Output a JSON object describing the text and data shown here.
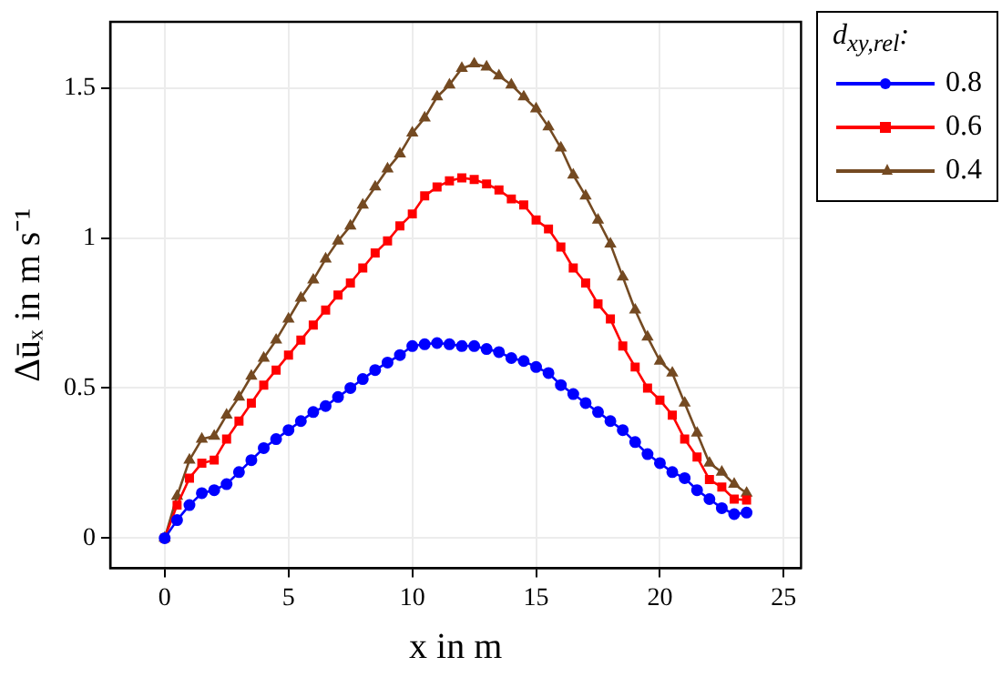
{
  "chart_data": {
    "type": "line",
    "xlabel": "x in m",
    "ylabel": "Δūₓ in m s⁻¹",
    "legend_title": "d$_{xy,rel}$:",
    "legend": "top right",
    "grid": true,
    "line_style": "solid",
    "x": [
      0,
      0.5,
      1,
      1.5,
      2,
      2.5,
      3,
      3.5,
      4,
      4.5,
      5,
      5.5,
      6,
      6.5,
      7,
      7.5,
      8,
      8.5,
      9,
      9.5,
      10,
      10.5,
      11,
      11.5,
      12,
      12.5,
      13,
      13.5,
      14,
      14.5,
      15,
      15.5,
      16,
      16.5,
      17,
      17.5,
      18,
      18.5,
      19,
      19.5,
      20,
      20.5,
      21,
      21.5,
      22,
      22.5,
      23,
      23.5
    ],
    "xlim": [
      -2.2,
      25.7
    ],
    "xticks": [
      0,
      5,
      10,
      15,
      20,
      25
    ],
    "ylim": [
      -0.1,
      1.72
    ],
    "yticks": [
      0,
      {
        "value": 0.5,
        "label": "0.5"
      },
      1,
      {
        "value": 1.5,
        "label": "1.5"
      }
    ],
    "series": [
      {
        "name": "0.8",
        "color": "#0000ff",
        "marker": "circle",
        "values": [
          0,
          0.06,
          0.11,
          0.15,
          0.16,
          0.18,
          0.22,
          0.26,
          0.3,
          0.33,
          0.36,
          0.39,
          0.42,
          0.44,
          0.47,
          0.5,
          0.53,
          0.56,
          0.585,
          0.61,
          0.64,
          0.646,
          0.65,
          0.646,
          0.64,
          0.64,
          0.63,
          0.62,
          0.6,
          0.59,
          0.57,
          0.55,
          0.51,
          0.48,
          0.45,
          0.42,
          0.39,
          0.36,
          0.32,
          0.28,
          0.25,
          0.22,
          0.2,
          0.16,
          0.13,
          0.1,
          0.08,
          0.085
        ]
      },
      {
        "name": "0.6",
        "color": "#ff0000",
        "marker": "square",
        "values": [
          0,
          0.11,
          0.2,
          0.25,
          0.26,
          0.33,
          0.39,
          0.45,
          0.51,
          0.56,
          0.61,
          0.66,
          0.71,
          0.76,
          0.81,
          0.85,
          0.9,
          0.95,
          0.99,
          1.04,
          1.08,
          1.14,
          1.17,
          1.19,
          1.2,
          1.195,
          1.18,
          1.16,
          1.13,
          1.11,
          1.06,
          1.03,
          0.97,
          0.9,
          0.85,
          0.78,
          0.73,
          0.64,
          0.57,
          0.5,
          0.46,
          0.41,
          0.33,
          0.27,
          0.195,
          0.17,
          0.13,
          0.127
        ]
      },
      {
        "name": "0.4",
        "color": "#744a22",
        "marker": "triangle",
        "values": [
          0,
          0.14,
          0.26,
          0.33,
          0.34,
          0.41,
          0.47,
          0.54,
          0.6,
          0.66,
          0.73,
          0.8,
          0.86,
          0.93,
          0.99,
          1.04,
          1.11,
          1.17,
          1.23,
          1.28,
          1.35,
          1.4,
          1.47,
          1.51,
          1.565,
          1.58,
          1.57,
          1.54,
          1.51,
          1.47,
          1.43,
          1.37,
          1.3,
          1.21,
          1.14,
          1.06,
          0.98,
          0.87,
          0.76,
          0.67,
          0.59,
          0.55,
          0.45,
          0.35,
          0.25,
          0.22,
          0.18,
          0.15
        ]
      }
    ]
  }
}
